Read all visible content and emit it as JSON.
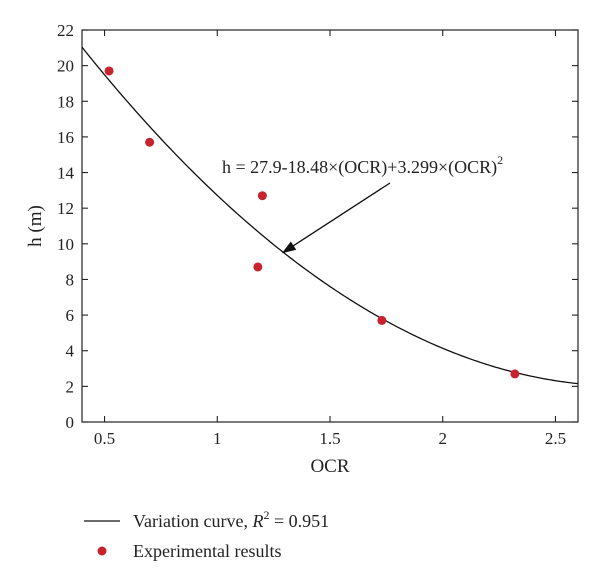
{
  "chart_data": {
    "type": "scatter",
    "xlabel": "OCR",
    "ylabel": "h (m)",
    "xlim": [
      0.4,
      2.6
    ],
    "ylim": [
      0,
      22
    ],
    "xticks": [
      0.5,
      1,
      1.5,
      2,
      2.5
    ],
    "xtick_labels": [
      "0.5",
      "1",
      "1.5",
      "2",
      "2.5"
    ],
    "yticks": [
      0,
      2,
      4,
      6,
      8,
      10,
      12,
      14,
      16,
      18,
      20,
      22
    ],
    "ytick_labels": [
      "0",
      "2",
      "4",
      "6",
      "8",
      "10",
      "12",
      "14",
      "16",
      "18",
      "20",
      "22"
    ],
    "grid": false,
    "legend_position": "bottom",
    "series": [
      {
        "name": "Experimental results",
        "kind": "scatter",
        "color": "#c8232c",
        "points": [
          {
            "x": 0.52,
            "y": 19.7
          },
          {
            "x": 0.7,
            "y": 15.7
          },
          {
            "x": 1.18,
            "y": 8.7
          },
          {
            "x": 1.2,
            "y": 12.7
          },
          {
            "x": 1.73,
            "y": 5.7
          },
          {
            "x": 2.32,
            "y": 2.7
          }
        ]
      },
      {
        "name": "Variation curve",
        "kind": "line",
        "color": "#111111",
        "equation": {
          "type": "quadratic",
          "a": 27.9,
          "b": -18.48,
          "c": 3.299
        },
        "r2": "0.951"
      }
    ],
    "annotation": {
      "text": "h = 27.9-18.48×(OCR)+3.299×(OCR)",
      "superscript": "2",
      "arrow_to": {
        "x": 1.29,
        "y": 9.5
      }
    },
    "legend": {
      "line_label_prefix": "Variation curve, ",
      "line_label_r": "R",
      "line_label_sup": "2",
      "line_label_suffix": " = 0.951",
      "scatter_label": "Experimental results"
    }
  }
}
